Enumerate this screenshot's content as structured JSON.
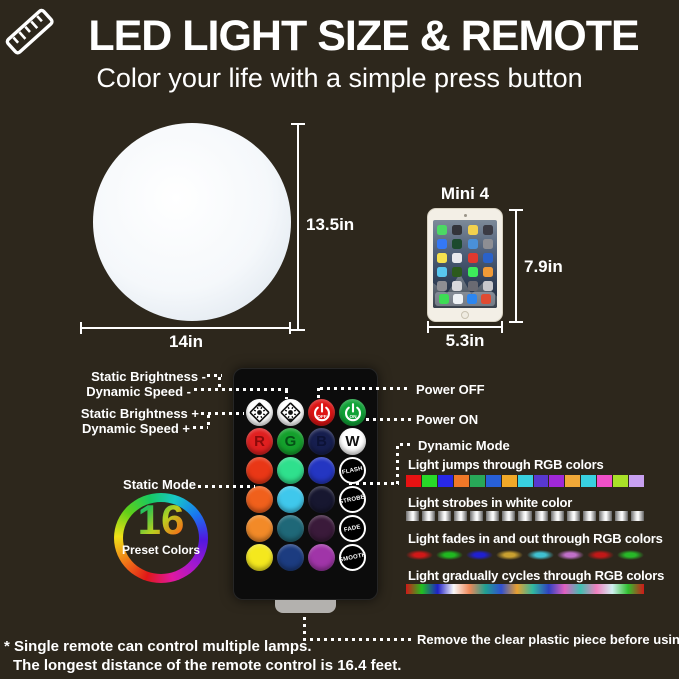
{
  "header": {
    "title": "LED LIGHT SIZE & REMOTE",
    "subtitle": "Color your life with a simple press button"
  },
  "light": {
    "width": "14in",
    "height": "13.5in"
  },
  "tablet": {
    "name": "Mini 4",
    "width": "5.3in",
    "height": "7.9in",
    "app_icon_colors": [
      "#4cd964",
      "#33343a",
      "#f3d14e",
      "#3b3b44",
      "#3478f6",
      "#1c4a2e",
      "#4a90d9",
      "#8e8e93",
      "#f6e14e",
      "#e8e8ed",
      "#e0382e",
      "#2a62c9",
      "#58c7f0",
      "#2c5a1c",
      "#3deb5b",
      "#f09a37",
      "#8e8e93",
      "#d8d8dc",
      "#6a6a72",
      "#c8c8cc"
    ],
    "dock_icon_colors": [
      "#3ddc54",
      "#eef2f6",
      "#2c86f0",
      "#e04b32"
    ]
  },
  "remote": {
    "left_labels": {
      "static_brightness_minus": "Static Brightness -",
      "dynamic_speed_minus": "Dynamic Speed -",
      "static_brightness_plus": "Static Brightness +",
      "dynamic_speed_plus": "Dynamic Speed +",
      "static_mode": "Static Mode"
    },
    "right_labels": {
      "power_off": "Power OFF",
      "power_on": "Power ON",
      "dynamic_mode": "Dynamic Mode"
    },
    "buttons": [
      {
        "name": "brightness-up-button",
        "type": "bright",
        "dir": "up",
        "bg": "#ffffff"
      },
      {
        "name": "brightness-down-button",
        "type": "bright",
        "dir": "down",
        "bg": "#ffffff"
      },
      {
        "name": "power-off-button",
        "type": "power",
        "label": "OFF",
        "bg": "#dd1414"
      },
      {
        "name": "power-on-button",
        "type": "power",
        "label": "ON",
        "bg": "#0fa236"
      },
      {
        "name": "red-button",
        "type": "letter",
        "label": "R",
        "bg": "#e02020",
        "fg": "#8a0a0a"
      },
      {
        "name": "green-button",
        "type": "letter",
        "label": "G",
        "bg": "#14a02c",
        "fg": "#055016"
      },
      {
        "name": "blue-button",
        "type": "letter",
        "label": "B",
        "bg": "#161e4e",
        "fg": "#0c1236"
      },
      {
        "name": "white-button",
        "type": "letter",
        "label": "W",
        "bg": "#ffffff",
        "fg": "#111111"
      },
      {
        "name": "color-button-red-orange",
        "type": "color",
        "bg": "#e93716"
      },
      {
        "name": "color-button-spring-green",
        "type": "color",
        "bg": "#2fe08d"
      },
      {
        "name": "color-button-blue",
        "type": "color",
        "bg": "#2436c2"
      },
      {
        "name": "flash-button",
        "type": "mode",
        "label": "FLASH"
      },
      {
        "name": "color-button-orange",
        "type": "color",
        "bg": "#f0601c"
      },
      {
        "name": "color-button-cyan",
        "type": "color",
        "bg": "#3fc8ec"
      },
      {
        "name": "color-button-dark-navy",
        "type": "color",
        "bg": "#171730"
      },
      {
        "name": "strobe-button",
        "type": "mode",
        "label": "STROBE"
      },
      {
        "name": "color-button-amber",
        "type": "color",
        "bg": "#f28a28"
      },
      {
        "name": "color-button-teal",
        "type": "color",
        "bg": "#1f6878"
      },
      {
        "name": "color-button-dark-plum",
        "type": "color",
        "bg": "#3a1a3a"
      },
      {
        "name": "fade-button",
        "type": "mode",
        "label": "FADE"
      },
      {
        "name": "color-button-yellow",
        "type": "color",
        "bg": "#f4e81e"
      },
      {
        "name": "color-button-dark-blue",
        "type": "color",
        "bg": "#1c3c80"
      },
      {
        "name": "color-button-purple",
        "type": "color",
        "bg": "#a035a8"
      },
      {
        "name": "smooth-button",
        "type": "mode",
        "label": "SMOOTH"
      }
    ]
  },
  "modes": [
    {
      "label": "Light jumps through RGB colors",
      "type": "blocks",
      "colors": [
        "#e81212",
        "#28d828",
        "#2828e8",
        "#f07828",
        "#28a858",
        "#2860d8",
        "#f0a828",
        "#38d0e0",
        "#5838d0",
        "#a028d8",
        "#f0a838",
        "#38d0e0",
        "#f050c8",
        "#a8e028",
        "#c8a0f0"
      ]
    },
    {
      "label": "Light strobes in white color",
      "type": "strobe",
      "count": 15
    },
    {
      "label": "Light fades in and out through RGB colors",
      "type": "blobs",
      "colors": [
        "#d01818",
        "#20b820",
        "#2020d0",
        "#c8a030",
        "#40c0d0",
        "#c070c8",
        "#c01818",
        "#28b828"
      ]
    },
    {
      "label": "Light  gradually cycles through RGB colors",
      "type": "gradient",
      "stops": [
        "#d01818",
        "#20c020",
        "#2020c8",
        "#f8f8f8",
        "#f08858",
        "#20a090",
        "#3050d0",
        "#e8a030",
        "#30b8a0",
        "#3040c0",
        "#e060c0",
        "#40c0b0",
        "#f080c0",
        "#d0f0f0",
        "#30c030",
        "#d01818"
      ]
    }
  ],
  "preset": {
    "number": "16",
    "caption": "Preset Colors"
  },
  "notes": {
    "remove": "Remove the clear plastic piece before using.",
    "line1": "* Single remote can control multiple lamps.",
    "line2": "The longest distance of the remote control is 16.4 feet."
  }
}
